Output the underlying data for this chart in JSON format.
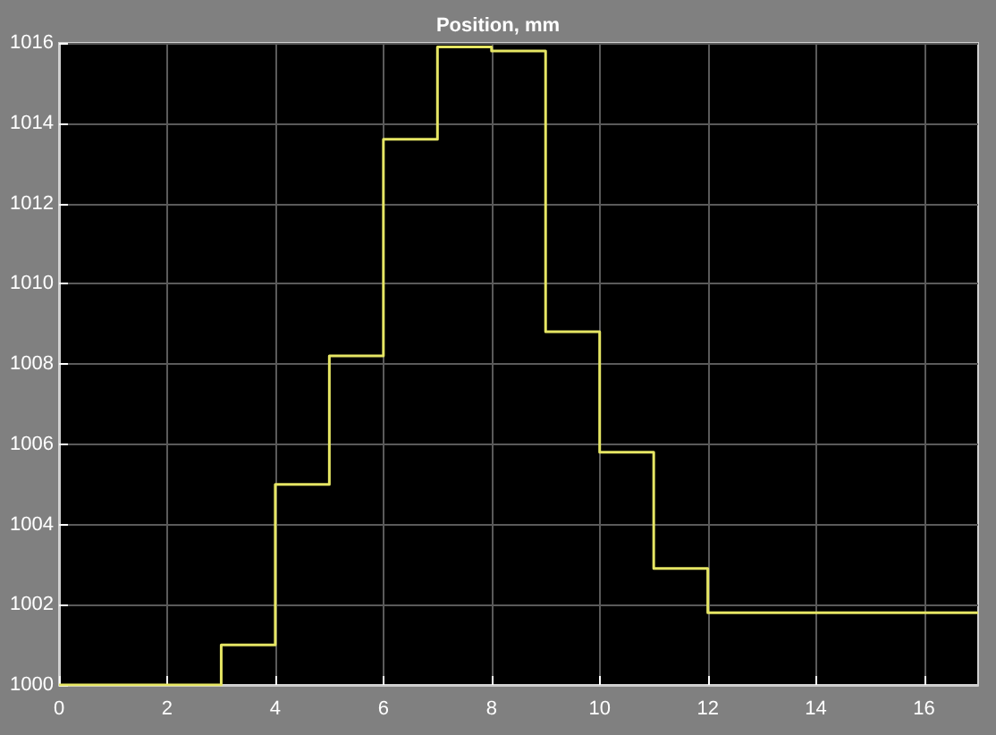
{
  "chart_data": {
    "type": "step",
    "title": "Position, mm",
    "x": [
      0,
      3,
      4,
      5,
      6,
      7,
      8,
      9,
      10,
      11,
      12,
      17
    ],
    "series": [
      {
        "color": "#e6e664",
        "values": [
          1000,
          1001,
          1005,
          1008.2,
          1013.6,
          1015.9,
          1015.8,
          1008.8,
          1005.8,
          1002.9,
          1001.8,
          1001.8
        ]
      }
    ],
    "xlim": [
      0,
      17
    ],
    "xticks": [
      0,
      2,
      4,
      6,
      8,
      10,
      12,
      14,
      16
    ],
    "ylim": [
      1000,
      1016
    ],
    "yticks": [
      1000,
      1002,
      1004,
      1006,
      1008,
      1010,
      1012,
      1014,
      1016
    ],
    "grid": true,
    "marker": "none",
    "line_style": "solid"
  }
}
